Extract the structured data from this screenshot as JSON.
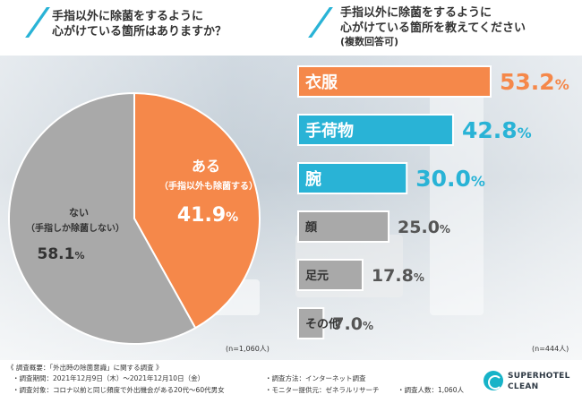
{
  "header": {
    "left_title_line1": "手指以外に除菌をするように",
    "left_title_line2": "心がけている箇所はありますか？",
    "right_title_line1": "手指以外に除菌をするように",
    "right_title_line2": "心がけている箇所を教えてください",
    "right_subtitle": "(複数回答可)"
  },
  "chart_data": [
    {
      "type": "pie",
      "question": "手指以外に除菌をするように心がけている箇所はありますか？",
      "slices": [
        {
          "label": "ある",
          "sublabel": "（手指以外も除菌する）",
          "value": 41.9,
          "value_main": "41.9",
          "value_unit": "%",
          "color": "#f5884a"
        },
        {
          "label": "ない",
          "sublabel": "（手指しか除菌しない）",
          "value": 58.1,
          "value_main": "58.1",
          "value_unit": "%",
          "color": "#a9a9a9"
        }
      ],
      "sample": "(n=1,060人)"
    },
    {
      "type": "bar",
      "orientation": "horizontal",
      "question": "手指以外に除菌をするように心がけている箇所を教えてください(複数回答可)",
      "categories": [
        "衣服",
        "手荷物",
        "腕",
        "顔",
        "足元",
        "その他"
      ],
      "values": [
        53.2,
        42.8,
        30.0,
        25.0,
        17.8,
        7.0
      ],
      "value_labels": [
        "53.2",
        "42.8",
        "30.0",
        "25.0",
        "17.8",
        "7.0"
      ],
      "unit": "%",
      "colors": [
        "#f5884a",
        "#29b3d6",
        "#29b3d6",
        "#a9a9a9",
        "#a9a9a9",
        "#a9a9a9"
      ],
      "value_colors": [
        "#f5884a",
        "#29b3d6",
        "#29b3d6",
        "#555555",
        "#555555",
        "#555555"
      ],
      "xlim": [
        0,
        55
      ],
      "sample": "(n=444人)"
    }
  ],
  "footer": {
    "survey_title": "《 調査概要：「外出時の除菌意識」に関する調査 》",
    "period": "・調査期間：2021年12月9日（木）～2021年12月10日（金）",
    "method": "・調査方法：インターネット調査",
    "target": "・調査対象：コロナ以前と同じ頻度で外出機会がある20代～60代男女",
    "provider": "・モニター提供元：ゼネラルリサーチ",
    "count": "・調査人数：1,060人"
  },
  "logo": {
    "line1": "SUPERHOTEL",
    "line2": "CLEAN"
  }
}
